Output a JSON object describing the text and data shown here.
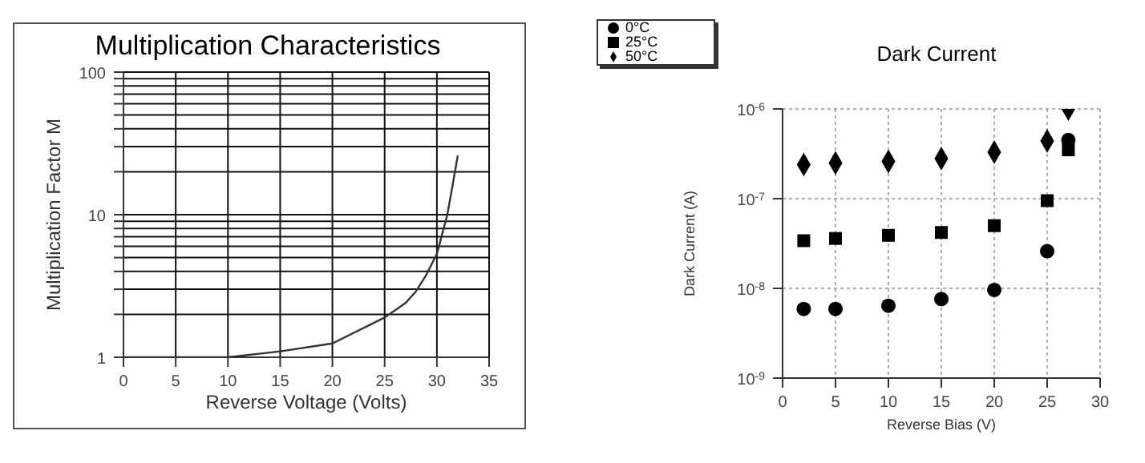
{
  "chart_data": [
    {
      "type": "line",
      "title": "Multiplication Characteristics",
      "xlabel": "Reverse Voltage (Volts)",
      "ylabel": "Multiplication Factor M",
      "log": "y",
      "grid": true,
      "marker": "none",
      "line_style": "solid",
      "x": [
        0,
        10,
        15,
        20,
        25,
        27,
        28,
        29,
        30,
        31,
        31.5,
        32
      ],
      "series": [
        {
          "color": "#333333",
          "values": [
            1,
            1,
            1.1,
            1.25,
            1.9,
            2.4,
            2.9,
            3.8,
            5.3,
            10,
            16,
            26
          ]
        }
      ],
      "xlim": [
        0,
        35
      ],
      "xticks": [
        0,
        5,
        10,
        15,
        20,
        25,
        30,
        35
      ],
      "ylim": [
        1,
        100
      ],
      "yticks": [
        1,
        {
          "value": 2,
          "label": null
        },
        {
          "value": 3,
          "label": null
        },
        {
          "value": 4,
          "label": null
        },
        {
          "value": 5,
          "label": null
        },
        {
          "value": 6,
          "label": null
        },
        {
          "value": 7,
          "label": null
        },
        {
          "value": 8,
          "label": null
        },
        {
          "value": 9,
          "label": null
        },
        10,
        {
          "value": 20,
          "label": null
        },
        {
          "value": 30,
          "label": null
        },
        {
          "value": 40,
          "label": null
        },
        {
          "value": 50,
          "label": null
        },
        {
          "value": 60,
          "label": null
        },
        {
          "value": 70,
          "label": null
        },
        {
          "value": 80,
          "label": null
        },
        {
          "value": 90,
          "label": null
        },
        100
      ]
    },
    {
      "type": "scatter",
      "title": "Dark Current",
      "xlabel": "Reverse Bias (V)",
      "ylabel": "Dark Current (A)",
      "log": "y",
      "grid": true,
      "legend": "top left",
      "x": [
        2,
        5,
        10,
        15,
        20,
        25,
        27
      ],
      "series": [
        {
          "name": "0°C",
          "color": "#000000",
          "marker": "circle",
          "values": [
            5.9e-09,
            5.9e-09,
            6.4e-09,
            7.6e-09,
            9.6e-09,
            2.6e-08,
            4.5e-07
          ]
        },
        {
          "name": "25°C",
          "color": "#000000",
          "marker": "square",
          "values": [
            3.4e-08,
            3.6e-08,
            3.9e-08,
            4.2e-08,
            5e-08,
            9.5e-08,
            3.5e-07
          ]
        },
        {
          "name": "50°C",
          "color": "#000000",
          "marker": "diamond",
          "values": [
            2.4e-07,
            2.5e-07,
            2.6e-07,
            2.8e-07,
            3.3e-07,
            4.4e-07,
            1e-06
          ]
        }
      ],
      "xlim": [
        0,
        30
      ],
      "xticks": [
        0,
        5,
        10,
        15,
        20,
        25,
        30
      ],
      "ylim": [
        1e-09,
        1e-06
      ],
      "yticks": [
        {
          "value": 1e-09,
          "label": "10$^{-9}$"
        },
        {
          "value": 1e-08,
          "label": "10$^{-8}$"
        },
        {
          "value": 1e-07,
          "label": "10$^{-7}$"
        },
        {
          "value": 1e-06,
          "label": "10$^{-6}$"
        }
      ]
    }
  ]
}
